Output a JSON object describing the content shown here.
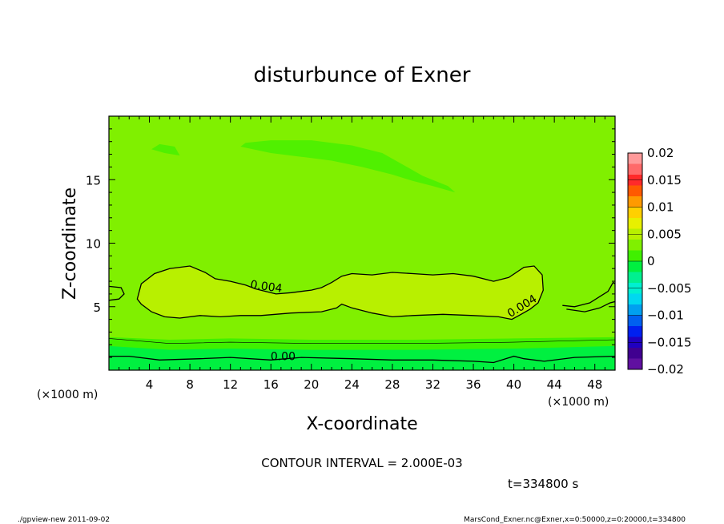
{
  "chart_data": {
    "type": "heatmap",
    "title": "disturbunce of Exner",
    "xlabel": "X-coordinate",
    "ylabel": "Z-coordinate",
    "x_unit": "(×1000 m)",
    "z_unit": "(×1000 m)",
    "xlim": [
      0,
      50
    ],
    "ylim": [
      0,
      20
    ],
    "x_ticks": [
      4,
      8,
      12,
      16,
      20,
      24,
      28,
      32,
      36,
      40,
      44,
      48
    ],
    "y_ticks": [
      5,
      10,
      15
    ],
    "contour_interval_text": "CONTOUR INTERVAL = 2.000E-03",
    "time_text": "t=334800 s",
    "contour_labels": [
      {
        "text": "0.004",
        "x": 15.5,
        "z": 6.3
      },
      {
        "text": "0.004",
        "x": 41.0,
        "z": 4.8
      },
      {
        "text": "0.00",
        "x": 17.2,
        "z": 0.8
      }
    ],
    "colorbar": {
      "levels": [
        0.02,
        0.015,
        0.01,
        0.005,
        0,
        -0.005,
        -0.01,
        -0.015,
        -0.02
      ],
      "level_labels": [
        "0.02",
        "0.015",
        "0.01",
        "0.005",
        "0",
        "−0.005",
        "−0.01",
        "−0.015",
        "−0.02"
      ],
      "colors_top_to_bottom": [
        "#ff9a9a",
        "#ff6a6a",
        "#ff2a2a",
        "#ff5a00",
        "#ff9a00",
        "#ffd000",
        "#e8f000",
        "#b8f000",
        "#80f000",
        "#40f000",
        "#00f040",
        "#00f090",
        "#00f0d0",
        "#00d8f0",
        "#00a0f0",
        "#0060f0",
        "#0020f0",
        "#2000c0",
        "#400090",
        "#6010a0"
      ]
    },
    "field_colors": {
      "background": "#80f000",
      "upper_patch": "#50f000",
      "mid_blob": "#b8f000",
      "low_band_1": "#40f000",
      "low_band_2": "#00f040"
    }
  },
  "footer": {
    "left": "./gpview-new  2011-09-02",
    "right": "MarsCond_Exner.nc@Exner,x=0:50000,z=0:20000,t=334800"
  }
}
